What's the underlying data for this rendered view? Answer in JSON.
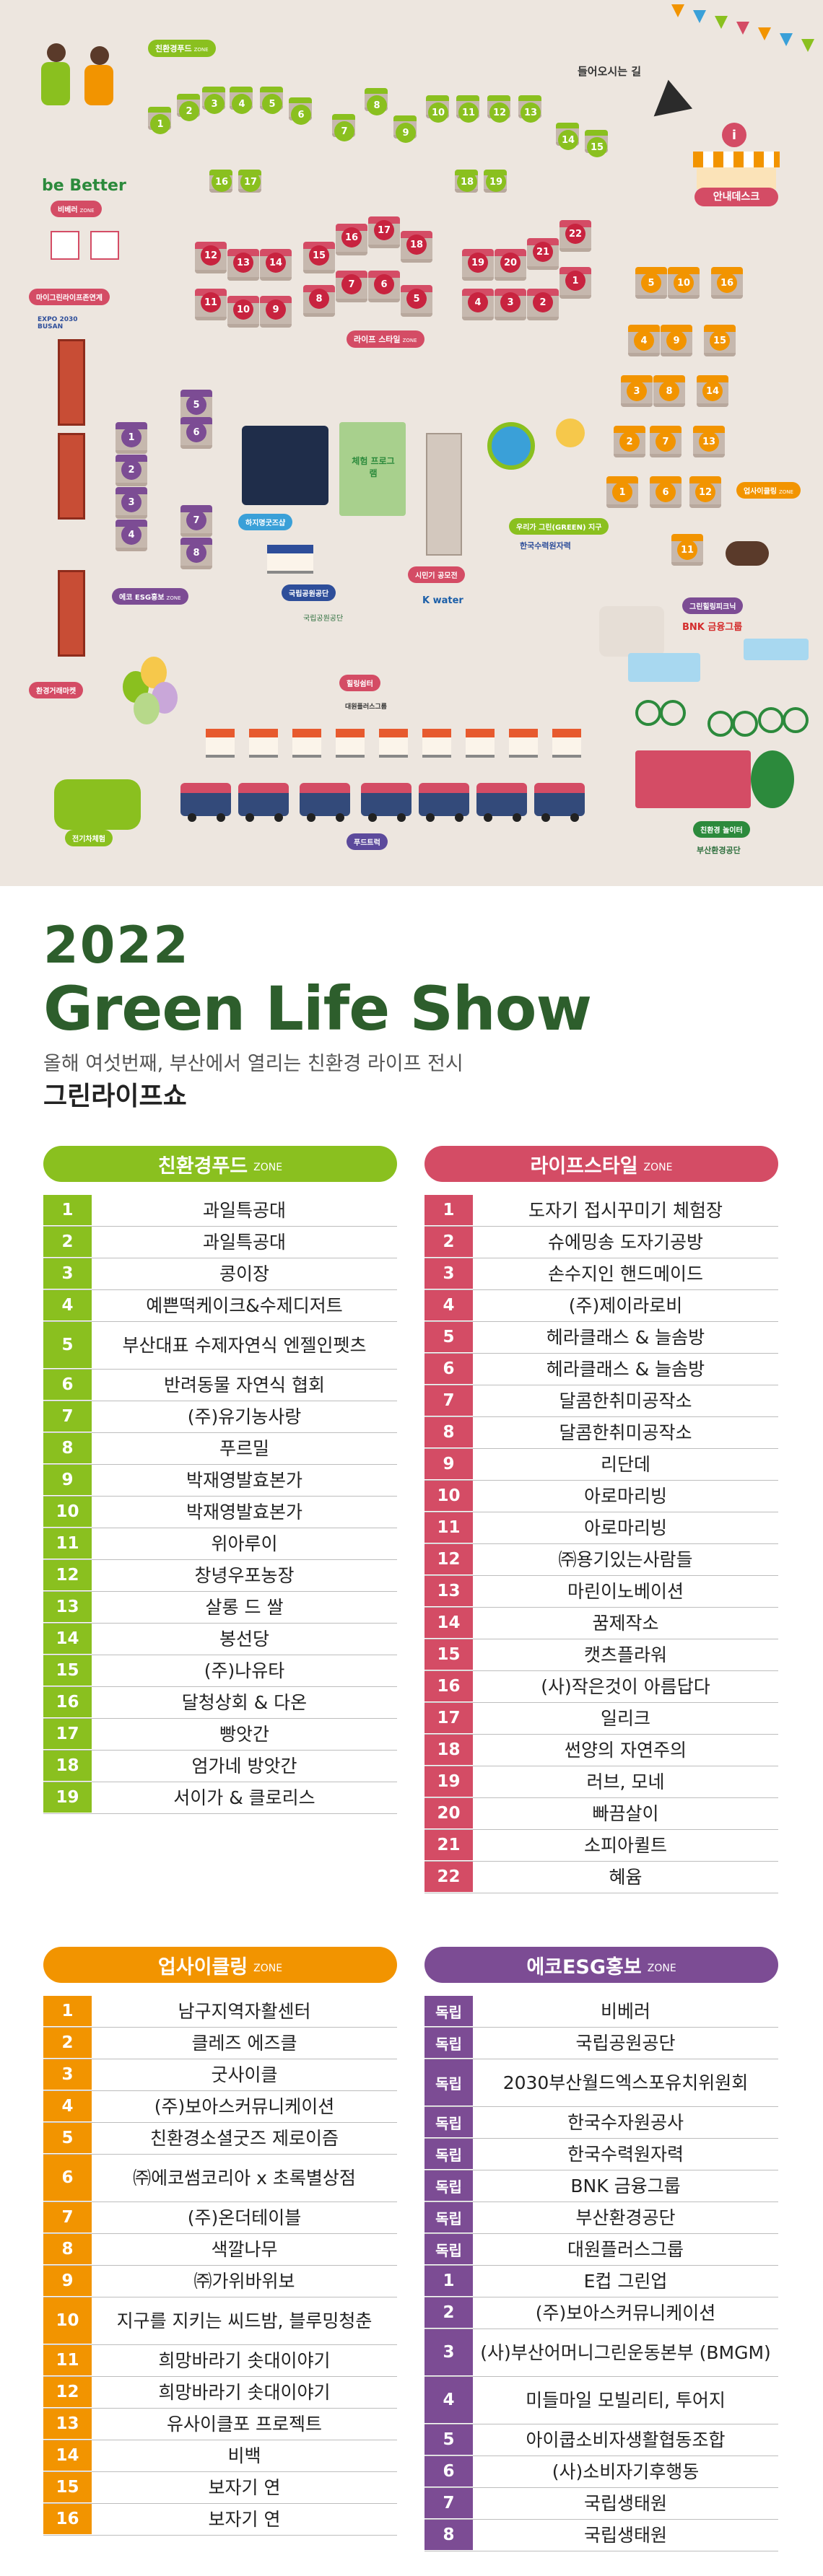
{
  "map": {
    "entrance_label": "들어오시는 길",
    "info_desk_label": "안내데스크",
    "zone_labels": {
      "food": {
        "name": "친환경푸드",
        "suffix": "ZONE"
      },
      "bebetter": {
        "name": "비베러",
        "suffix": "ZONE"
      },
      "mygreen": "마이그린라이프존연계",
      "lifestyle": {
        "name": "라이프 스타일",
        "suffix": "ZONE"
      },
      "upcycle": {
        "name": "업사이클링",
        "suffix": "ZONE"
      },
      "eco": {
        "name": "에코 ESG홍보",
        "suffix": "ZONE"
      },
      "green_earth": {
        "name": "우리가 그린(GREEN) 지구"
      },
      "zero_market": "환경거래마켓",
      "ev": "전기차체험",
      "playground": "친환경 놀이터",
      "food_truck": "푸드트럭",
      "rest": "힐링쉼터",
      "national_park": "국립공원공단",
      "kwater_area": "시민기 공모전",
      "bnk_area": "그린힐링피크닉",
      "experience": "체험 프로그램",
      "photo": "하지명굿즈샵"
    },
    "logos": {
      "bebetter": "be Better",
      "expo": "EXPO 2030 BUSAN",
      "kwater": "K water",
      "nps": "국립공원공단",
      "bnk": "BNK 금융그룹",
      "busan_env": "부산환경공단",
      "khnp": "한국수력원자력",
      "daewon": "대원플러스그룹"
    }
  },
  "title": {
    "year": "2022",
    "name": "Green Life Show",
    "subtitle": "올해 여섯번째, 부산에서 열리는 친환경 라이프 전시",
    "subtitle2": "그린라이프쇼"
  },
  "zones": {
    "food": {
      "name": "친환경푸드",
      "suffix": "ZONE",
      "color": "#8ac01f",
      "rows": [
        {
          "n": "1",
          "t": "과일특공대"
        },
        {
          "n": "2",
          "t": "과일특공대"
        },
        {
          "n": "3",
          "t": "콩이장"
        },
        {
          "n": "4",
          "t": "예쁜떡케이크&수제디저트"
        },
        {
          "n": "5",
          "t": "부산대표 수제자연식 엔젤인펫츠"
        },
        {
          "n": "6",
          "t": "반려동물 자연식 협회"
        },
        {
          "n": "7",
          "t": "(주)유기농사랑"
        },
        {
          "n": "8",
          "t": "푸르밀"
        },
        {
          "n": "9",
          "t": "박재영발효본가"
        },
        {
          "n": "10",
          "t": "박재영발효본가"
        },
        {
          "n": "11",
          "t": "위아루이"
        },
        {
          "n": "12",
          "t": "창녕우포농장"
        },
        {
          "n": "13",
          "t": "살롱 드 쌀"
        },
        {
          "n": "14",
          "t": "봉선당"
        },
        {
          "n": "15",
          "t": "(주)나유타"
        },
        {
          "n": "16",
          "t": "달청상회 & 다온"
        },
        {
          "n": "17",
          "t": "빵앗간"
        },
        {
          "n": "18",
          "t": "엄가네 방앗간"
        },
        {
          "n": "19",
          "t": "서이가 & 클로리스"
        }
      ]
    },
    "lifestyle": {
      "name": "라이프스타일",
      "suffix": "ZONE",
      "color": "#d44c65",
      "rows": [
        {
          "n": "1",
          "t": "도자기 접시꾸미기 체험장"
        },
        {
          "n": "2",
          "t": "슈에밍송 도자기공방"
        },
        {
          "n": "3",
          "t": "손수지인 핸드메이드"
        },
        {
          "n": "4",
          "t": "(주)제이라로비"
        },
        {
          "n": "5",
          "t": "헤라클래스 & 늘솜방"
        },
        {
          "n": "6",
          "t": "헤라클래스 & 늘솜방"
        },
        {
          "n": "7",
          "t": "달콤한취미공작소"
        },
        {
          "n": "8",
          "t": "달콤한취미공작소"
        },
        {
          "n": "9",
          "t": "리단데"
        },
        {
          "n": "10",
          "t": "아로마리빙"
        },
        {
          "n": "11",
          "t": "아로마리빙"
        },
        {
          "n": "12",
          "t": "㈜용기있는사람들"
        },
        {
          "n": "13",
          "t": "마린이노베이션"
        },
        {
          "n": "14",
          "t": "꿈제작소"
        },
        {
          "n": "15",
          "t": "캣츠플라워"
        },
        {
          "n": "16",
          "t": "(사)작은것이 아름답다"
        },
        {
          "n": "17",
          "t": "일리크"
        },
        {
          "n": "18",
          "t": "썬양의 자연주의"
        },
        {
          "n": "19",
          "t": "러브, 모네"
        },
        {
          "n": "20",
          "t": "빠끔살이"
        },
        {
          "n": "21",
          "t": "소피아퀼트"
        },
        {
          "n": "22",
          "t": "혜윰"
        }
      ]
    },
    "upcycle": {
      "name": "업사이클링",
      "suffix": "ZONE",
      "color": "#f29400",
      "rows": [
        {
          "n": "1",
          "t": "남구지역자활센터"
        },
        {
          "n": "2",
          "t": "클레즈 에즈클"
        },
        {
          "n": "3",
          "t": "굿사이클"
        },
        {
          "n": "4",
          "t": "(주)보아스커뮤니케이션"
        },
        {
          "n": "5",
          "t": "친환경소셜굿즈 제로이즘"
        },
        {
          "n": "6",
          "t": "㈜에코썸코리아 x 초록별상점"
        },
        {
          "n": "7",
          "t": "(주)온더테이블"
        },
        {
          "n": "8",
          "t": "색깔나무"
        },
        {
          "n": "9",
          "t": "㈜가위바위보"
        },
        {
          "n": "10",
          "t": "지구를 지키는 씨드밤, 블루밍청춘"
        },
        {
          "n": "11",
          "t": "희망바라기 솟대이야기"
        },
        {
          "n": "12",
          "t": "희망바라기 솟대이야기"
        },
        {
          "n": "13",
          "t": "유사이클포 프로젝트"
        },
        {
          "n": "14",
          "t": "비백"
        },
        {
          "n": "15",
          "t": "보자기 연"
        },
        {
          "n": "16",
          "t": "보자기 연"
        }
      ]
    },
    "eco": {
      "name": "에코ESG홍보",
      "suffix": "ZONE",
      "color": "#7c4c94",
      "rows": [
        {
          "n": "독립",
          "t": "비베러"
        },
        {
          "n": "독립",
          "t": "국립공원공단"
        },
        {
          "n": "독립",
          "t": "2030부산월드엑스포유치위원회"
        },
        {
          "n": "독립",
          "t": "한국수자원공사"
        },
        {
          "n": "독립",
          "t": "한국수력원자력"
        },
        {
          "n": "독립",
          "t": "BNK 금융그룹"
        },
        {
          "n": "독립",
          "t": "부산환경공단"
        },
        {
          "n": "독립",
          "t": "대원플러스그룹"
        },
        {
          "n": "1",
          "t": "E컵 그린업"
        },
        {
          "n": "2",
          "t": "(주)보아스커뮤니케이션"
        },
        {
          "n": "3",
          "t": "(사)부산어머니그린운동본부 (BMGM)"
        },
        {
          "n": "4",
          "t": "미들마일 모빌리티, 투어지"
        },
        {
          "n": "5",
          "t": "아이쿱소비자생활협동조합"
        },
        {
          "n": "6",
          "t": "(사)소비자기후행동"
        },
        {
          "n": "7",
          "t": "국립생태원"
        },
        {
          "n": "8",
          "t": "국립생태원"
        }
      ]
    }
  }
}
